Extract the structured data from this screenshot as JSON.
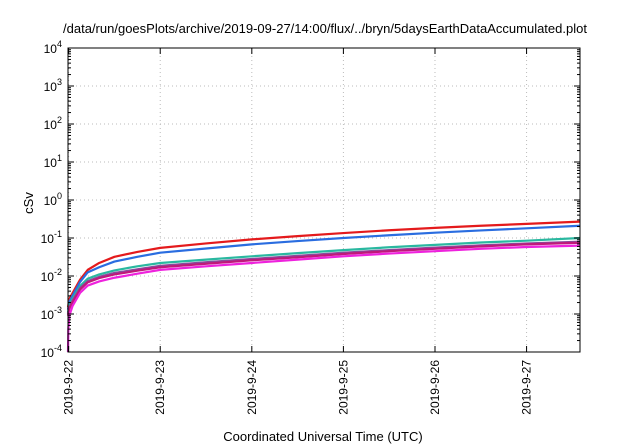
{
  "chart_data": {
    "type": "line",
    "title": "/data/run/goesPlots/archive/2019-09-27/14:00/flux/../bryn/5daysEarthDataAccumulated.plot",
    "xlabel": "Coordinated Universal Time (UTC)",
    "ylabel": "cSv",
    "y_scale": "log",
    "ylim": [
      0.0001,
      10000
    ],
    "xlim": [
      "2019-09-21T23:50",
      "2019-09-27T14:00"
    ],
    "grid": true,
    "legend": "none",
    "x_ticks": [
      {
        "t": "2019-09-22T00:00",
        "label": "2019-9-22"
      },
      {
        "t": "2019-09-23T00:00",
        "label": "2019-9-23"
      },
      {
        "t": "2019-09-24T00:00",
        "label": "2019-9-24"
      },
      {
        "t": "2019-09-25T00:00",
        "label": "2019-9-25"
      },
      {
        "t": "2019-09-26T00:00",
        "label": "2019-9-26"
      },
      {
        "t": "2019-09-27T00:00",
        "label": "2019-9-27"
      }
    ],
    "y_ticks": [
      {
        "v": 0.0001,
        "base": "10",
        "exp": "-4"
      },
      {
        "v": 0.001,
        "base": "10",
        "exp": "-3"
      },
      {
        "v": 0.01,
        "base": "10",
        "exp": "-2"
      },
      {
        "v": 0.1,
        "base": "10",
        "exp": "-1"
      },
      {
        "v": 1,
        "base": "10",
        "exp": "0"
      },
      {
        "v": 10,
        "base": "10",
        "exp": "1"
      },
      {
        "v": 100,
        "base": "10",
        "exp": "2"
      },
      {
        "v": 1000,
        "base": "10",
        "exp": "3"
      },
      {
        "v": 10000,
        "base": "10",
        "exp": "4"
      }
    ],
    "series": [
      {
        "color": "#e41a1c",
        "points": [
          [
            "2019-09-21T23:50",
            0.0015
          ],
          [
            "2019-09-22T00:10",
            0.0025
          ],
          [
            "2019-09-22T01:00",
            0.0035
          ],
          [
            "2019-09-22T03:00",
            0.008
          ],
          [
            "2019-09-22T05:00",
            0.0145
          ],
          [
            "2019-09-22T08:00",
            0.022
          ],
          [
            "2019-09-22T12:00",
            0.032
          ],
          [
            "2019-09-22T18:00",
            0.043
          ],
          [
            "2019-09-23T00:00",
            0.055
          ],
          [
            "2019-09-23T12:00",
            0.072
          ],
          [
            "2019-09-24T00:00",
            0.092
          ],
          [
            "2019-09-24T12:00",
            0.112
          ],
          [
            "2019-09-25T00:00",
            0.135
          ],
          [
            "2019-09-25T12:00",
            0.16
          ],
          [
            "2019-09-26T00:00",
            0.185
          ],
          [
            "2019-09-26T12:00",
            0.21
          ],
          [
            "2019-09-27T00:00",
            0.235
          ],
          [
            "2019-09-27T14:00",
            0.27
          ]
        ]
      },
      {
        "color": "#2a6de0",
        "points": [
          [
            "2019-09-21T23:50",
            0.0013
          ],
          [
            "2019-09-22T00:10",
            0.0021
          ],
          [
            "2019-09-22T01:00",
            0.003
          ],
          [
            "2019-09-22T03:00",
            0.007
          ],
          [
            "2019-09-22T05:00",
            0.0125
          ],
          [
            "2019-09-22T08:00",
            0.017
          ],
          [
            "2019-09-22T12:00",
            0.024
          ],
          [
            "2019-09-22T18:00",
            0.032
          ],
          [
            "2019-09-23T00:00",
            0.041
          ],
          [
            "2019-09-23T12:00",
            0.053
          ],
          [
            "2019-09-24T00:00",
            0.068
          ],
          [
            "2019-09-24T12:00",
            0.083
          ],
          [
            "2019-09-25T00:00",
            0.1
          ],
          [
            "2019-09-25T12:00",
            0.118
          ],
          [
            "2019-09-26T00:00",
            0.138
          ],
          [
            "2019-09-26T12:00",
            0.158
          ],
          [
            "2019-09-27T00:00",
            0.18
          ],
          [
            "2019-09-27T14:00",
            0.21
          ]
        ]
      },
      {
        "color": "#2ab8a0",
        "points": [
          [
            "2019-09-21T23:50",
            0.0011
          ],
          [
            "2019-09-22T00:10",
            0.0017
          ],
          [
            "2019-09-22T01:00",
            0.0025
          ],
          [
            "2019-09-22T03:00",
            0.0055
          ],
          [
            "2019-09-22T05:00",
            0.0085
          ],
          [
            "2019-09-22T08:00",
            0.011
          ],
          [
            "2019-09-22T12:00",
            0.014
          ],
          [
            "2019-09-22T18:00",
            0.018
          ],
          [
            "2019-09-23T00:00",
            0.022
          ],
          [
            "2019-09-23T12:00",
            0.027
          ],
          [
            "2019-09-24T00:00",
            0.033
          ],
          [
            "2019-09-24T12:00",
            0.04
          ],
          [
            "2019-09-25T00:00",
            0.048
          ],
          [
            "2019-09-25T12:00",
            0.057
          ],
          [
            "2019-09-26T00:00",
            0.066
          ],
          [
            "2019-09-26T12:00",
            0.076
          ],
          [
            "2019-09-27T00:00",
            0.085
          ],
          [
            "2019-09-27T14:00",
            0.1
          ]
        ]
      },
      {
        "color": "#8a4a9c",
        "points": [
          [
            "2019-09-21T23:50",
            0.001
          ],
          [
            "2019-09-22T00:10",
            0.0015
          ],
          [
            "2019-09-22T01:00",
            0.0022
          ],
          [
            "2019-09-22T03:00",
            0.0048
          ],
          [
            "2019-09-22T05:00",
            0.0073
          ],
          [
            "2019-09-22T08:00",
            0.0095
          ],
          [
            "2019-09-22T12:00",
            0.012
          ],
          [
            "2019-09-22T18:00",
            0.015
          ],
          [
            "2019-09-23T00:00",
            0.0185
          ],
          [
            "2019-09-23T12:00",
            0.023
          ],
          [
            "2019-09-24T00:00",
            0.028
          ],
          [
            "2019-09-24T12:00",
            0.034
          ],
          [
            "2019-09-25T00:00",
            0.041
          ],
          [
            "2019-09-25T12:00",
            0.048
          ],
          [
            "2019-09-26T00:00",
            0.056
          ],
          [
            "2019-09-26T12:00",
            0.064
          ],
          [
            "2019-09-27T00:00",
            0.072
          ],
          [
            "2019-09-27T14:00",
            0.08
          ]
        ]
      },
      {
        "color": "#c0187a",
        "points": [
          [
            "2019-09-21T23:50",
            0.0009
          ],
          [
            "2019-09-22T00:10",
            0.0014
          ],
          [
            "2019-09-22T01:00",
            0.002
          ],
          [
            "2019-09-22T03:00",
            0.0044
          ],
          [
            "2019-09-22T05:00",
            0.0068
          ],
          [
            "2019-09-22T08:00",
            0.0088
          ],
          [
            "2019-09-22T12:00",
            0.011
          ],
          [
            "2019-09-22T18:00",
            0.0138
          ],
          [
            "2019-09-23T00:00",
            0.017
          ],
          [
            "2019-09-23T12:00",
            0.021
          ],
          [
            "2019-09-24T00:00",
            0.026
          ],
          [
            "2019-09-24T12:00",
            0.031
          ],
          [
            "2019-09-25T00:00",
            0.038
          ],
          [
            "2019-09-25T12:00",
            0.045
          ],
          [
            "2019-09-26T00:00",
            0.052
          ],
          [
            "2019-09-26T12:00",
            0.06
          ],
          [
            "2019-09-27T00:00",
            0.068
          ],
          [
            "2019-09-27T14:00",
            0.075
          ]
        ]
      },
      {
        "color": "#ee22dd",
        "points": [
          [
            "2019-09-21T23:50",
            0.0001
          ],
          [
            "2019-09-21T23:55",
            0.0004
          ],
          [
            "2019-09-22T00:10",
            0.0009
          ],
          [
            "2019-09-22T01:00",
            0.0016
          ],
          [
            "2019-09-22T03:00",
            0.0036
          ],
          [
            "2019-09-22T05:00",
            0.0056
          ],
          [
            "2019-09-22T08:00",
            0.0072
          ],
          [
            "2019-09-22T12:00",
            0.009
          ],
          [
            "2019-09-22T18:00",
            0.0115
          ],
          [
            "2019-09-23T00:00",
            0.0145
          ],
          [
            "2019-09-23T12:00",
            0.018
          ],
          [
            "2019-09-24T00:00",
            0.022
          ],
          [
            "2019-09-24T12:00",
            0.027
          ],
          [
            "2019-09-25T00:00",
            0.033
          ],
          [
            "2019-09-25T12:00",
            0.039
          ],
          [
            "2019-09-26T00:00",
            0.045
          ],
          [
            "2019-09-26T12:00",
            0.052
          ],
          [
            "2019-09-27T00:00",
            0.058
          ],
          [
            "2019-09-27T14:00",
            0.063
          ]
        ]
      }
    ]
  }
}
